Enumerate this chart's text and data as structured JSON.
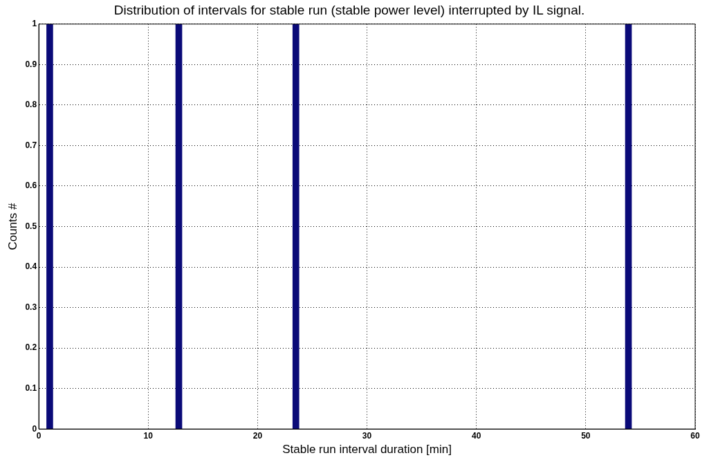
{
  "chart_data": {
    "type": "bar",
    "title": "Distribution of intervals for stable run (stable power level) interrupted by IL signal.",
    "xlabel": "Stable run interval duration [min]",
    "ylabel": "Counts #",
    "x": [
      1,
      12.8,
      23.5,
      53.9
    ],
    "values": [
      1,
      1,
      1,
      1
    ],
    "color": "#0a0a78",
    "xlim": [
      0,
      60
    ],
    "xticks": [
      0,
      10,
      20,
      30,
      40,
      50,
      60
    ],
    "ylim": [
      0,
      1
    ],
    "yticks": [
      0,
      0.1,
      0.2,
      0.3,
      0.4,
      0.5,
      0.6,
      0.7,
      0.8,
      0.9,
      1
    ],
    "grid": true,
    "legend": false
  }
}
